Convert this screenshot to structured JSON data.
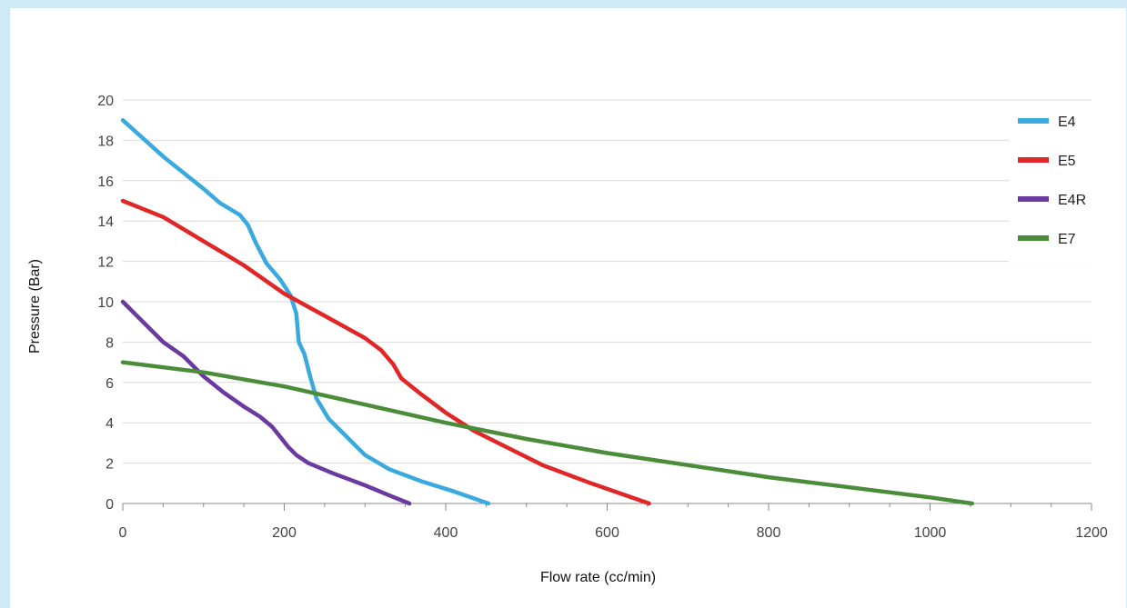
{
  "chart_data": {
    "type": "line",
    "title": "",
    "xlabel": "Flow rate (cc/min)",
    "ylabel": "Pressure (Bar)",
    "xlim": [
      0,
      1200
    ],
    "ylim": [
      0,
      20
    ],
    "xticks": [
      0,
      200,
      400,
      600,
      800,
      1000,
      1200
    ],
    "yticks": [
      0,
      2,
      4,
      6,
      8,
      10,
      12,
      14,
      16,
      18,
      20
    ],
    "grid": "horizontal",
    "legend_position": "right",
    "series": [
      {
        "name": "E4",
        "color": "#3aa9de",
        "points": [
          [
            0,
            19
          ],
          [
            50,
            17.2
          ],
          [
            100,
            15.6
          ],
          [
            120,
            14.9
          ],
          [
            145,
            14.3
          ],
          [
            155,
            13.8
          ],
          [
            165,
            12.9
          ],
          [
            178,
            11.9
          ],
          [
            195,
            11.1
          ],
          [
            208,
            10.3
          ],
          [
            215,
            9.4
          ],
          [
            218,
            8.0
          ],
          [
            225,
            7.4
          ],
          [
            232,
            6.3
          ],
          [
            240,
            5.2
          ],
          [
            255,
            4.2
          ],
          [
            275,
            3.4
          ],
          [
            300,
            2.4
          ],
          [
            330,
            1.7
          ],
          [
            370,
            1.1
          ],
          [
            410,
            0.6
          ],
          [
            453,
            0
          ]
        ]
      },
      {
        "name": "E5",
        "color": "#e02626",
        "points": [
          [
            0,
            15
          ],
          [
            50,
            14.2
          ],
          [
            100,
            13.0
          ],
          [
            150,
            11.8
          ],
          [
            200,
            10.4
          ],
          [
            250,
            9.3
          ],
          [
            300,
            8.2
          ],
          [
            320,
            7.6
          ],
          [
            335,
            6.9
          ],
          [
            345,
            6.2
          ],
          [
            370,
            5.4
          ],
          [
            400,
            4.5
          ],
          [
            435,
            3.6
          ],
          [
            470,
            2.9
          ],
          [
            520,
            1.9
          ],
          [
            580,
            1.0
          ],
          [
            652,
            0
          ]
        ]
      },
      {
        "name": "E4R",
        "color": "#6a3aa0",
        "points": [
          [
            0,
            10
          ],
          [
            25,
            9.0
          ],
          [
            50,
            8.0
          ],
          [
            75,
            7.3
          ],
          [
            100,
            6.3
          ],
          [
            125,
            5.5
          ],
          [
            150,
            4.8
          ],
          [
            170,
            4.3
          ],
          [
            185,
            3.8
          ],
          [
            195,
            3.3
          ],
          [
            205,
            2.8
          ],
          [
            215,
            2.4
          ],
          [
            230,
            2.0
          ],
          [
            260,
            1.5
          ],
          [
            300,
            0.9
          ],
          [
            330,
            0.4
          ],
          [
            355,
            0
          ]
        ]
      },
      {
        "name": "E7",
        "color": "#4a8c3a",
        "points": [
          [
            0,
            7
          ],
          [
            100,
            6.5
          ],
          [
            200,
            5.8
          ],
          [
            300,
            4.9
          ],
          [
            400,
            4.0
          ],
          [
            500,
            3.2
          ],
          [
            600,
            2.5
          ],
          [
            700,
            1.9
          ],
          [
            800,
            1.3
          ],
          [
            900,
            0.8
          ],
          [
            1000,
            0.3
          ],
          [
            1052,
            0
          ]
        ]
      }
    ]
  }
}
